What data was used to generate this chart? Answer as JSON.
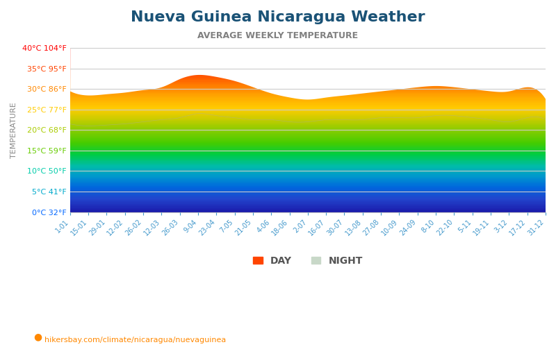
{
  "title": "Nueva Guinea Nicaragua Weather",
  "subtitle": "AVERAGE WEEKLY TEMPERATURE",
  "title_color": "#1a5276",
  "subtitle_color": "#808080",
  "ylabel": "TEMPERATURE",
  "footer": "hikersbay.com/climate/nicaragua/nuevaguinea",
  "ymin": 0,
  "ymax": 40,
  "yticks_c": [
    0,
    5,
    10,
    15,
    20,
    25,
    30,
    35,
    40
  ],
  "yticks_f": [
    32,
    41,
    50,
    59,
    68,
    77,
    86,
    95,
    104
  ],
  "xtick_labels": [
    "1-01",
    "15-01",
    "29-01",
    "12-02",
    "26-02",
    "12-03",
    "26-03",
    "9-04",
    "23-04",
    "7-05",
    "21-05",
    "4-06",
    "18-06",
    "2-07",
    "16-07",
    "30-07",
    "13-08",
    "27-08",
    "10-09",
    "24-09",
    "8-10",
    "22-10",
    "5-11",
    "19-11",
    "3-12",
    "17-12",
    "31-12"
  ],
  "day_temps": [
    29.5,
    28.5,
    28.8,
    29.2,
    29.8,
    30.5,
    32.5,
    33.5,
    33.0,
    32.0,
    30.5,
    29.0,
    28.0,
    27.5,
    28.0,
    28.5,
    29.0,
    29.5,
    30.0,
    30.5,
    30.8,
    30.5,
    30.0,
    29.5,
    29.5,
    30.5,
    27.5
  ],
  "night_temps": [
    21.5,
    21.0,
    21.2,
    21.5,
    22.0,
    22.5,
    23.0,
    24.0,
    23.5,
    23.0,
    22.5,
    22.5,
    22.0,
    22.0,
    22.5,
    22.5,
    22.5,
    23.0,
    23.0,
    23.0,
    23.5,
    23.5,
    23.0,
    22.5,
    22.0,
    23.0,
    22.5
  ],
  "legend_day_color": "#ff4500",
  "legend_night_color": "#c8d8c8",
  "background_color": "#ffffff",
  "grid_color": "#cccccc"
}
